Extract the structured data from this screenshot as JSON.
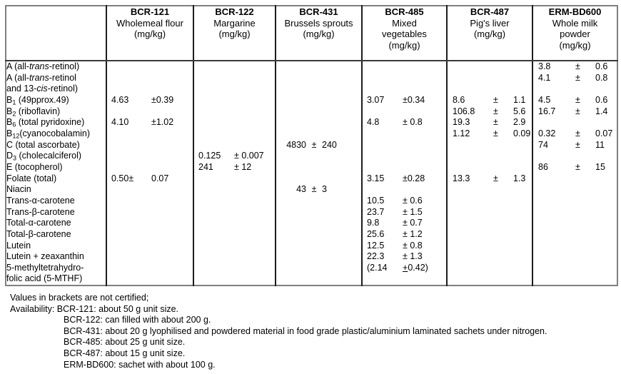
{
  "table": {
    "columns": [
      {
        "code": "BCR-121",
        "name_lines": [
          "Wholemeal flour"
        ],
        "unit": "(mg/kg)"
      },
      {
        "code": "BCR-122",
        "name_lines": [
          "Margarine"
        ],
        "unit": "(mg/kg)"
      },
      {
        "code": "BCR-431",
        "name_lines": [
          "Brussels sprouts"
        ],
        "unit": "(mg/kg)"
      },
      {
        "code": "BCR-485",
        "name_lines": [
          "Mixed",
          "vegetables"
        ],
        "unit": "(mg/kg)"
      },
      {
        "code": "BCR-487",
        "name_lines": [
          "Pig's liver"
        ],
        "unit": "(mg/kg)"
      },
      {
        "code": "ERM-BD600",
        "name_lines": [
          "Whole milk",
          "powder"
        ],
        "unit": "(mg/kg)"
      }
    ],
    "rows": [
      {
        "label": "A (all-*trans*-retinol)",
        "cells": [
          null,
          null,
          null,
          null,
          null,
          {
            "v": "3.8",
            "pm": "±",
            "u": "0.6"
          }
        ]
      },
      {
        "label": "A (all-*trans*-retinol",
        "cells": [
          null,
          null,
          null,
          null,
          null,
          {
            "v": "4.1",
            "pm": "±",
            "u": "0.8"
          }
        ]
      },
      {
        "label": "and 13-*cis*-retinol)",
        "cells": [
          null,
          null,
          null,
          null,
          null,
          null
        ]
      },
      {
        "label": "B{1} (49pprox.49)",
        "cells": [
          {
            "v": "4.63",
            "u": "±0.39"
          },
          null,
          null,
          {
            "v": "3.07",
            "u": "±0.34"
          },
          {
            "v": "8.6",
            "pm": "±",
            "u": "1.1"
          },
          {
            "v": "4.5",
            "pm": "±",
            "u": "0.6"
          }
        ]
      },
      {
        "label": "B{2} (riboflavin)",
        "cells": [
          null,
          null,
          null,
          null,
          {
            "v": "106.8",
            "pm": "±",
            "u": "5.6"
          },
          {
            "v": "16.7",
            "pm": "±",
            "u": "1.4"
          }
        ]
      },
      {
        "label": "B{6} (total pyridoxine)",
        "cells": [
          {
            "v": "4.10",
            "u": "±1.02"
          },
          null,
          null,
          {
            "v": "4.8",
            "u": "± 0.8"
          },
          {
            "v": "19.3",
            "pm": "±",
            "u": "2.9"
          },
          null
        ]
      },
      {
        "label": "B{12}(cyanocobalamin)",
        "cells": [
          null,
          null,
          null,
          null,
          {
            "v": "1.12",
            "pm": "±",
            "u": "0.09"
          },
          {
            "v": "0.32",
            "pm": "±",
            "u": "0.07"
          }
        ]
      },
      {
        "label": "C (total ascorbate)",
        "cells": [
          null,
          null,
          {
            "v": "4830",
            "pm": "±",
            "u": "240"
          },
          null,
          null,
          {
            "v": "74",
            "pm": "±",
            "u": "11"
          }
        ]
      },
      {
        "label": "D{3} (cholecalciferol)",
        "cells": [
          null,
          {
            "v": "0.125",
            "u": "± 0.007"
          },
          null,
          null,
          null,
          null
        ]
      },
      {
        "label": "E (tocopherol)",
        "cells": [
          null,
          {
            "v": "241",
            "u": "± 12"
          },
          null,
          null,
          null,
          {
            "v": "86",
            "pm": "±",
            "u": "15"
          }
        ]
      },
      {
        "label": "Folate (total)",
        "cells": [
          {
            "v": "0.50±",
            "u": "0.07"
          },
          null,
          null,
          {
            "v": "3.15",
            "u": "±0.28"
          },
          {
            "v": "13.3",
            "pm": "±",
            "u": "1.3"
          },
          null
        ]
      },
      {
        "label": "Niacin",
        "cells": [
          null,
          null,
          {
            "v": "43",
            "pm": "±",
            "u": "3"
          },
          null,
          null,
          null
        ]
      },
      {
        "label": "Trans-α-carotene",
        "cells": [
          null,
          null,
          null,
          {
            "v": "10.5",
            "u": "± 0.6"
          },
          null,
          null
        ]
      },
      {
        "label": "Trans-β-carotene",
        "cells": [
          null,
          null,
          null,
          {
            "v": "23.7",
            "u": "± 1.5"
          },
          null,
          null
        ]
      },
      {
        "label": "Total-α-carotene",
        "cells": [
          null,
          null,
          null,
          {
            "v": "9.8",
            "u": "± 0.7"
          },
          null,
          null
        ]
      },
      {
        "label": "Total-β-carotene",
        "cells": [
          null,
          null,
          null,
          {
            "v": "25.6",
            "u": "± 1.2"
          },
          null,
          null
        ]
      },
      {
        "label": "Lutein",
        "cells": [
          null,
          null,
          null,
          {
            "v": "12.5",
            "u": "± 0.8"
          },
          null,
          null
        ]
      },
      {
        "label": "Lutein + zeaxanthin",
        "cells": [
          null,
          null,
          null,
          {
            "v": "22.3",
            "u": "± 1.3"
          },
          null,
          null
        ]
      },
      {
        "label": "5-methyltetrahydro-",
        "cells": [
          null,
          null,
          null,
          {
            "v": "(2.14",
            "u": "+0.42)",
            "upm": true
          },
          null,
          null
        ]
      },
      {
        "label": "folic acid (5-MTHF)",
        "cells": [
          null,
          null,
          null,
          null,
          null,
          null
        ]
      }
    ]
  },
  "notes": {
    "line1": "Values in brackets are not certified;",
    "availability_label": "Availability:",
    "availability_items": [
      "BCR-121: about 50 g unit size.",
      "BCR-122: can filled with about 200 g.",
      "BCR-431: about 20 g lyophilised and powdered material in food grade plastic/aluminium laminated sachets under nitrogen.",
      "BCR-485: about 25 g unit size.",
      "BCR-487: about 15 g unit size.",
      "ERM-BD600: sachet with about 100 g."
    ]
  }
}
